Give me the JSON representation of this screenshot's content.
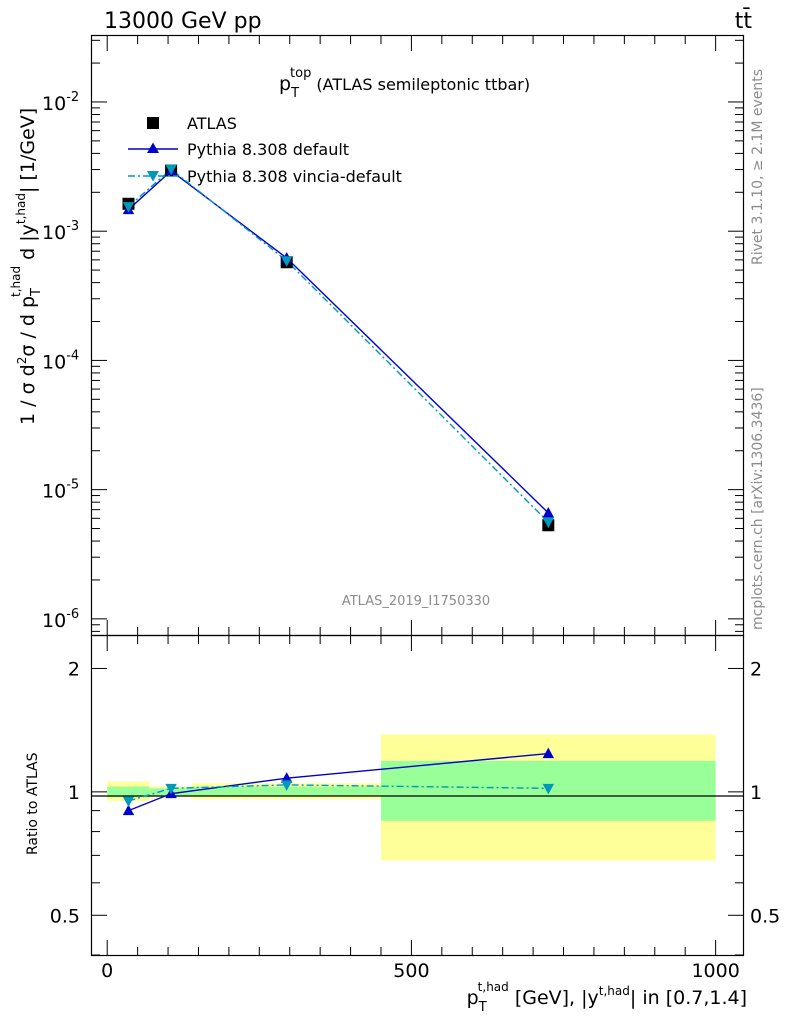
{
  "header": {
    "left": "13000 GeV pp",
    "right": "tt̄"
  },
  "plot_title": {
    "main": "p",
    "sub": "T",
    "sup": "top",
    "rest": " (ATLAS semileptonic ttbar)"
  },
  "side_texts": {
    "rivet": "Rivet 3.1.10, ≥ 2.1M events",
    "mcplots": "mcplots.cern.ch [arXiv:1306.3436]"
  },
  "watermark": "ATLAS_2019_I1750330",
  "legend": [
    {
      "label": "ATLAS",
      "marker": "square",
      "color": "#000000"
    },
    {
      "label": "Pythia 8.308 default",
      "marker": "triangle-up",
      "color": "#0000cc"
    },
    {
      "label": "Pythia 8.308 vincia-default",
      "marker": "triangle-down",
      "color": "#0099bb"
    }
  ],
  "axes": {
    "ylabel_main": {
      "p1": "1 / σ d",
      "sup2": "2",
      "p2": "σ / d p",
      "subT": "T",
      "supth": "t,had",
      "p3": " d |y",
      "supth2": "t,had",
      "p4": "| [1/GeV]"
    },
    "ylabel_ratio": "Ratio to ATLAS",
    "xlabel": {
      "p1": "p",
      "subT": "T",
      "supth": "t,had",
      "p2": " [GeV], |y",
      "supth2": "t,had",
      "p3": "| in [0.7,1.4]"
    },
    "main_yticks": [
      {
        "base": "10",
        "exp": "-6",
        "value": 1e-06
      },
      {
        "base": "10",
        "exp": "-5",
        "value": 1e-05
      },
      {
        "base": "10",
        "exp": "-4",
        "value": 0.0001
      },
      {
        "base": "10",
        "exp": "-3",
        "value": 0.001
      },
      {
        "base": "10",
        "exp": "-2",
        "value": 0.01
      }
    ],
    "ratio_yticks": [
      {
        "label": "0.5",
        "value": 0.5
      },
      {
        "label": "1",
        "value": 1
      },
      {
        "label": "2",
        "value": 2
      }
    ],
    "xticks": [
      {
        "label": "0",
        "value": 0
      },
      {
        "label": "500",
        "value": 500
      },
      {
        "label": "1000",
        "value": 1000
      }
    ]
  },
  "chart_data": {
    "type": "scatter",
    "title": "p_T^top (ATLAS semileptonic ttbar)",
    "xlabel": "p_T^{t,had} [GeV], |y^{t,had}| in [0.7,1.4]",
    "ylabel": "1 / σ d²σ / d p_T^{t,had} d |y^{t,had}| [1/GeV]",
    "xlim": [
      -25,
      1045
    ],
    "ylim_log": [
      7.5e-07,
      0.0324
    ],
    "ratio_ylim_log": [
      0.4,
      2.4
    ],
    "bins": [
      [
        0,
        70
      ],
      [
        70,
        140
      ],
      [
        140,
        450
      ],
      [
        450,
        1000
      ]
    ],
    "x": [
      35,
      105,
      295,
      725
    ],
    "series": [
      {
        "name": "ATLAS",
        "values": [
          0.00163,
          0.00295,
          0.000575,
          5.3e-06
        ],
        "ratio": [
          1,
          1,
          1,
          1
        ]
      },
      {
        "name": "Pythia 8.308 default",
        "values": [
          0.00147,
          0.00293,
          0.00062,
          6.6e-06
        ],
        "ratio": [
          0.9,
          0.99,
          1.08,
          1.24
        ]
      },
      {
        "name": "Pythia 8.308 vincia-default",
        "values": [
          0.00155,
          0.00302,
          0.00059,
          5.6e-06
        ],
        "ratio": [
          0.95,
          1.02,
          1.04,
          1.02
        ]
      }
    ],
    "ratio_bands": [
      {
        "x0": 0,
        "x1": 70,
        "stat": [
          0.97,
          1.03
        ],
        "total": [
          0.95,
          1.06
        ]
      },
      {
        "x0": 70,
        "x1": 140,
        "stat": [
          0.98,
          1.02
        ],
        "total": [
          0.97,
          1.03
        ]
      },
      {
        "x0": 140,
        "x1": 450,
        "stat": [
          0.98,
          1.03
        ],
        "total": [
          0.96,
          1.05
        ]
      },
      {
        "x0": 450,
        "x1": 1000,
        "stat": [
          0.85,
          1.19
        ],
        "total": [
          0.68,
          1.38
        ]
      }
    ],
    "ratio_errors": [
      0,
      0,
      0,
      0.04
    ]
  }
}
